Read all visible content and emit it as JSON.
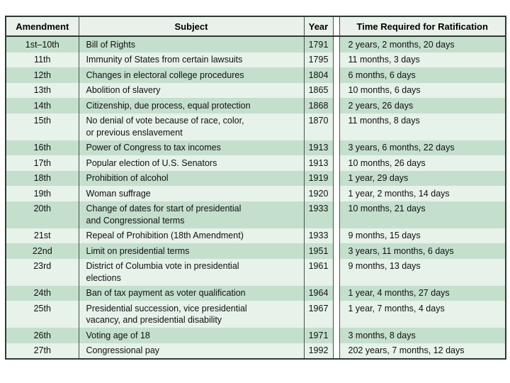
{
  "chart_data": {
    "type": "table",
    "columns": [
      "Amendment",
      "Subject",
      "Year",
      "Time Required for Ratification"
    ],
    "rows": [
      {
        "amendment": "1st–10th",
        "subject": "Bill of Rights",
        "year": "1791",
        "time": "2 years, 2 months, 20 days"
      },
      {
        "amendment": "11th",
        "subject": "Immunity of States from certain lawsuits",
        "year": "1795",
        "time": "11 months, 3 days"
      },
      {
        "amendment": "12th",
        "subject": "Changes in electoral college procedures",
        "year": "1804",
        "time": "6 months, 6 days"
      },
      {
        "amendment": "13th",
        "subject": "Abolition of slavery",
        "year": "1865",
        "time": "10 months, 6 days"
      },
      {
        "amendment": "14th",
        "subject": "Citizenship, due process, equal protection",
        "year": "1868",
        "time": "2 years, 26 days"
      },
      {
        "amendment": "15th",
        "subject": "No denial of vote because of race, color,\nor previous enslavement",
        "year": "1870",
        "time": "11 months, 8 days"
      },
      {
        "amendment": "16th",
        "subject": "Power of Congress to tax incomes",
        "year": "1913",
        "time": "3 years, 6 months, 22 days"
      },
      {
        "amendment": "17th",
        "subject": "Popular election of U.S. Senators",
        "year": "1913",
        "time": "10 months, 26 days"
      },
      {
        "amendment": "18th",
        "subject": "Prohibition of alcohol",
        "year": "1919",
        "time": "1 year, 29 days"
      },
      {
        "amendment": "19th",
        "subject": "Woman suffrage",
        "year": "1920",
        "time": "1 year, 2 months, 14 days"
      },
      {
        "amendment": "20th",
        "subject": "Change of dates for start of presidential\nand Congressional terms",
        "year": "1933",
        "time": "10 months, 21 days"
      },
      {
        "amendment": "21st",
        "subject": "Repeal of Prohibition (18th Amendment)",
        "year": "1933",
        "time": "9 months, 15 days"
      },
      {
        "amendment": "22nd",
        "subject": "Limit on presidential terms",
        "year": "1951",
        "time": "3 years, 11 months, 6 days"
      },
      {
        "amendment": "23rd",
        "subject": "District of Columbia vote in presidential\nelections",
        "year": "1961",
        "time": "9 months, 13 days"
      },
      {
        "amendment": "24th",
        "subject": "Ban of tax payment as voter qualification",
        "year": "1964",
        "time": "1 year, 4 months, 27 days"
      },
      {
        "amendment": "25th",
        "subject": "Presidential succession, vice presidential\nvacancy, and presidential disability",
        "year": "1967",
        "time": "1 year, 7 months, 4 days"
      },
      {
        "amendment": "26th",
        "subject": "Voting age of 18",
        "year": "1971",
        "time": "3 months, 8 days"
      },
      {
        "amendment": "27th",
        "subject": "Congressional pay",
        "year": "1992",
        "time": "202 years, 7 months, 12 days"
      }
    ],
    "colors": {
      "row_dark": "#c5dfcd",
      "row_light": "#e7f2ea",
      "header_bg": "#eaf1ea",
      "border": "#2d3b32"
    },
    "layout": {
      "stripes": "alternating starting dark",
      "gutter_before_last_column": true
    }
  }
}
